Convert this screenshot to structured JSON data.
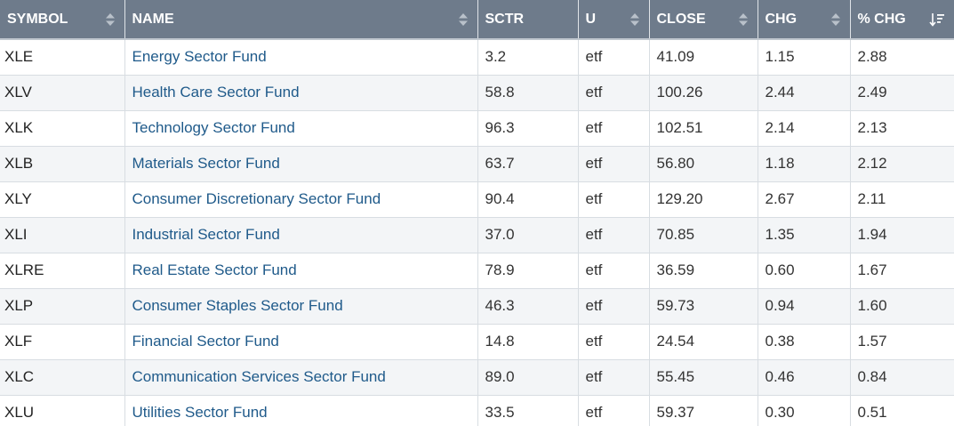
{
  "table": {
    "columns": [
      {
        "label": "SYMBOL",
        "sort_icon": "sort-updown-icon"
      },
      {
        "label": "NAME",
        "sort_icon": "sort-updown-icon"
      },
      {
        "label": "SCTR",
        "sort_icon": ""
      },
      {
        "label": "U",
        "sort_icon": "sort-updown-icon"
      },
      {
        "label": "CLOSE",
        "sort_icon": "sort-updown-icon"
      },
      {
        "label": "CHG",
        "sort_icon": "sort-updown-icon"
      },
      {
        "label": "% CHG",
        "sort_icon": "sort-descending-icon"
      }
    ],
    "rows": [
      {
        "symbol": "XLE",
        "name": "Energy Sector Fund",
        "sctr": "3.2",
        "u": "etf",
        "close": "41.09",
        "chg": "1.15",
        "pct_chg": "2.88"
      },
      {
        "symbol": "XLV",
        "name": "Health Care Sector Fund",
        "sctr": "58.8",
        "u": "etf",
        "close": "100.26",
        "chg": "2.44",
        "pct_chg": "2.49"
      },
      {
        "symbol": "XLK",
        "name": "Technology Sector Fund",
        "sctr": "96.3",
        "u": "etf",
        "close": "102.51",
        "chg": "2.14",
        "pct_chg": "2.13"
      },
      {
        "symbol": "XLB",
        "name": "Materials Sector Fund",
        "sctr": "63.7",
        "u": "etf",
        "close": "56.80",
        "chg": "1.18",
        "pct_chg": "2.12"
      },
      {
        "symbol": "XLY",
        "name": "Consumer Discretionary Sector Fund",
        "sctr": "90.4",
        "u": "etf",
        "close": "129.20",
        "chg": "2.67",
        "pct_chg": "2.11"
      },
      {
        "symbol": "XLI",
        "name": "Industrial Sector Fund",
        "sctr": "37.0",
        "u": "etf",
        "close": "70.85",
        "chg": "1.35",
        "pct_chg": "1.94"
      },
      {
        "symbol": "XLRE",
        "name": "Real Estate Sector Fund",
        "sctr": "78.9",
        "u": "etf",
        "close": "36.59",
        "chg": "0.60",
        "pct_chg": "1.67"
      },
      {
        "symbol": "XLP",
        "name": "Consumer Staples Sector Fund",
        "sctr": "46.3",
        "u": "etf",
        "close": "59.73",
        "chg": "0.94",
        "pct_chg": "1.60"
      },
      {
        "symbol": "XLF",
        "name": "Financial Sector Fund",
        "sctr": "14.8",
        "u": "etf",
        "close": "24.54",
        "chg": "0.38",
        "pct_chg": "1.57"
      },
      {
        "symbol": "XLC",
        "name": "Communication Services Sector Fund",
        "sctr": "89.0",
        "u": "etf",
        "close": "55.45",
        "chg": "0.46",
        "pct_chg": "0.84"
      },
      {
        "symbol": "XLU",
        "name": "Utilities Sector Fund",
        "sctr": "33.5",
        "u": "etf",
        "close": "59.37",
        "chg": "0.30",
        "pct_chg": "0.51"
      }
    ]
  },
  "colors": {
    "header_bg": "#6e7b8b",
    "link": "#1f5a8a",
    "alt_row": "#f3f5f7"
  }
}
